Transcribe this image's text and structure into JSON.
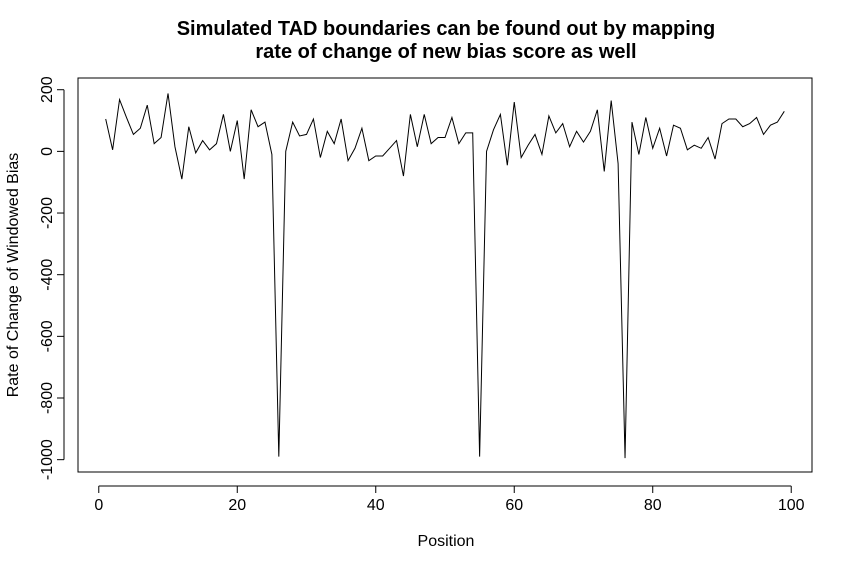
{
  "chart_data": {
    "type": "line",
    "title_lines": [
      "Simulated TAD boundaries can be found out by mapping",
      "rate of change of new bias score as well"
    ],
    "xlabel": "Position",
    "ylabel": "Rate of Change of Windowed Bias",
    "xlim": [
      -3,
      103
    ],
    "ylim": [
      -1040,
      238
    ],
    "xticks": [
      0,
      20,
      40,
      60,
      80,
      100
    ],
    "yticks": [
      200,
      0,
      -200,
      -400,
      -600,
      -800,
      -1000
    ],
    "x": [
      1,
      2,
      3,
      4,
      5,
      6,
      7,
      8,
      9,
      10,
      11,
      12,
      13,
      14,
      15,
      16,
      17,
      18,
      19,
      20,
      21,
      22,
      23,
      24,
      25,
      26,
      27,
      28,
      29,
      30,
      31,
      32,
      33,
      34,
      35,
      36,
      37,
      38,
      39,
      40,
      41,
      42,
      43,
      44,
      45,
      46,
      47,
      48,
      49,
      50,
      51,
      52,
      53,
      54,
      55,
      56,
      57,
      58,
      59,
      60,
      61,
      62,
      63,
      64,
      65,
      66,
      67,
      68,
      69,
      70,
      71,
      72,
      73,
      74,
      75,
      76,
      77,
      78,
      79,
      80,
      81,
      82,
      83,
      84,
      85,
      86,
      87,
      88,
      89,
      90,
      91,
      92,
      93,
      94,
      95,
      96,
      97,
      98,
      99
    ],
    "series": [
      {
        "name": "Rate of Change of Windowed Bias",
        "values": [
          105,
          5,
          168,
          110,
          55,
          75,
          150,
          25,
          45,
          188,
          15,
          -90,
          80,
          -5,
          35,
          5,
          25,
          120,
          0,
          100,
          -90,
          135,
          80,
          95,
          -10,
          -990,
          0,
          95,
          50,
          55,
          105,
          -20,
          65,
          25,
          105,
          -30,
          10,
          75,
          -30,
          -15,
          -15,
          10,
          35,
          -80,
          120,
          15,
          120,
          25,
          45,
          45,
          110,
          25,
          60,
          60,
          -990,
          0,
          70,
          120,
          -45,
          160,
          -20,
          20,
          55,
          -10,
          115,
          60,
          90,
          15,
          65,
          30,
          65,
          135,
          -65,
          165,
          -40,
          -995,
          95,
          -10,
          110,
          10,
          75,
          -15,
          85,
          75,
          5,
          20,
          10,
          45,
          -25,
          90,
          105,
          105,
          80,
          90,
          110,
          55,
          85,
          95,
          130
        ]
      }
    ]
  }
}
